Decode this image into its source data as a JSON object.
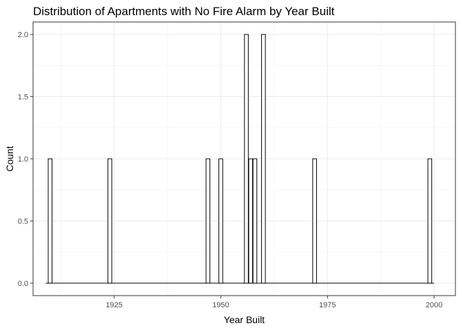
{
  "chart_data": {
    "type": "bar",
    "title": "Distribution of Apartments with No Fire Alarm by Year Built",
    "xlabel": "Year Built",
    "ylabel": "Count",
    "xlim": [
      1906,
      2005
    ],
    "ylim": [
      -0.1,
      2.1
    ],
    "x_ticks": [
      1925,
      1950,
      1975,
      2000
    ],
    "y_ticks": [
      0.0,
      0.5,
      1.0,
      1.5,
      2.0
    ],
    "y_tick_labels": [
      "0.0",
      "0.5",
      "1.0",
      "1.5",
      "2.0"
    ],
    "bin_start": 1909,
    "bin_width": 0.9,
    "bin_end": 2000,
    "bins": [
      {
        "year": 1910,
        "count": 1
      },
      {
        "year": 1924,
        "count": 1
      },
      {
        "year": 1947,
        "count": 1
      },
      {
        "year": 1950,
        "count": 1
      },
      {
        "year": 1956,
        "count": 2
      },
      {
        "year": 1957,
        "count": 1
      },
      {
        "year": 1958,
        "count": 1
      },
      {
        "year": 1960,
        "count": 2
      },
      {
        "year": 1972,
        "count": 1
      },
      {
        "year": 1999,
        "count": 1
      }
    ],
    "grid": true,
    "legend": "none"
  }
}
